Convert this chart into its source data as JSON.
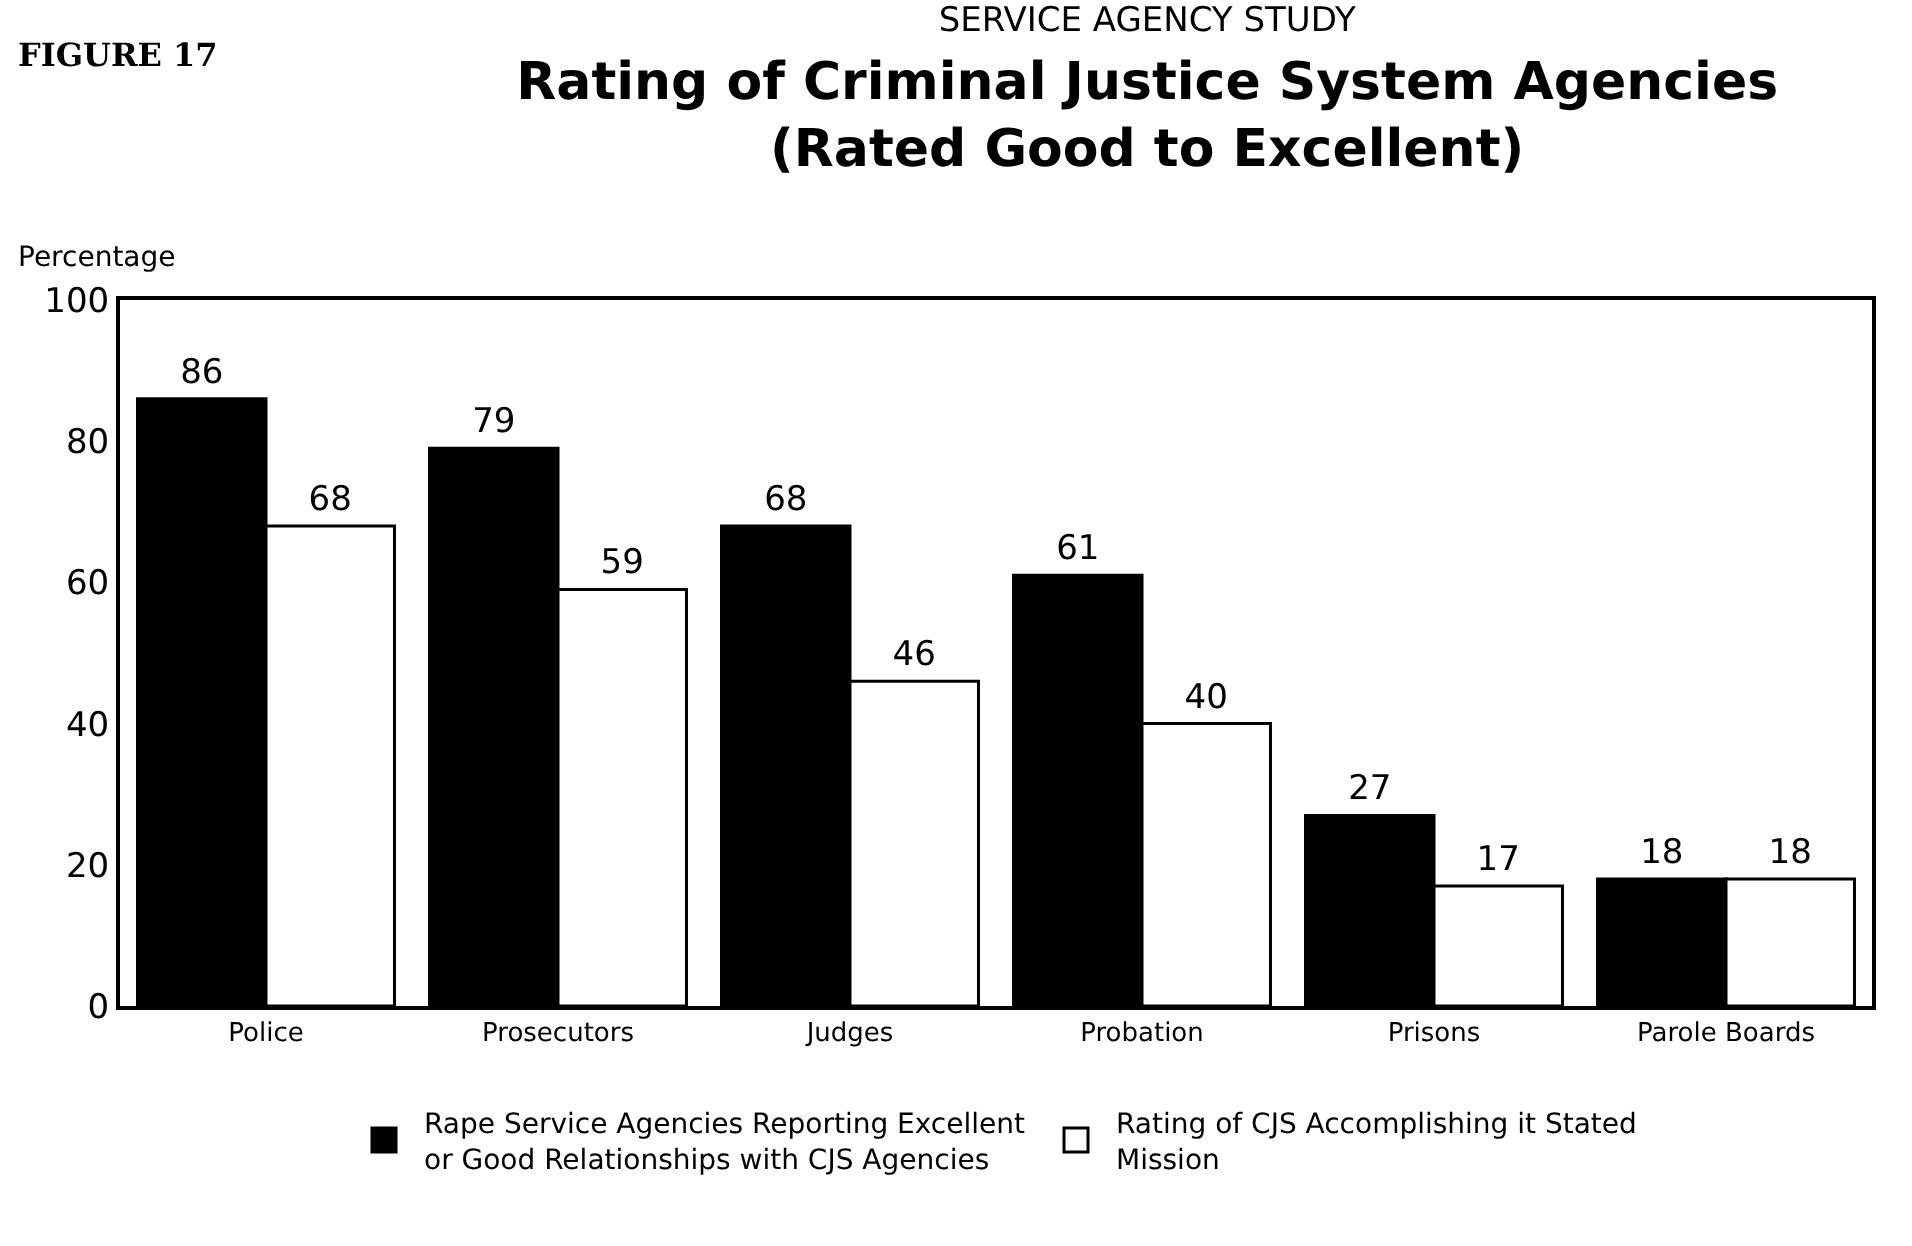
{
  "chart_data": {
    "type": "bar",
    "title": "Rating of Criminal Justice System Agencies (Rated Good to Excellent)",
    "subtitle": "SERVICE AGENCY STUDY",
    "ylabel": "Percentage",
    "annotations": [
      "FIGURE 17"
    ],
    "categories": [
      "Police",
      "Prosecutors",
      "Judges",
      "Probation",
      "Prisons",
      "Parole Boards"
    ],
    "series": [
      {
        "name": "Rape Service Agencies Reporting Excellent or Good Relationships with CJS Agencies",
        "color": "#000000",
        "values": [
          86,
          79,
          68,
          61,
          27,
          18
        ]
      },
      {
        "name": "Rating of CJS Accomplishing it Stated Mission",
        "color": "#ffffff",
        "values": [
          68,
          59,
          46,
          40,
          17,
          18
        ]
      }
    ],
    "ylim": [
      0,
      100
    ],
    "yticks": [
      0,
      20,
      40,
      60,
      80,
      100
    ],
    "data_labels": true,
    "legend": "bottom"
  }
}
